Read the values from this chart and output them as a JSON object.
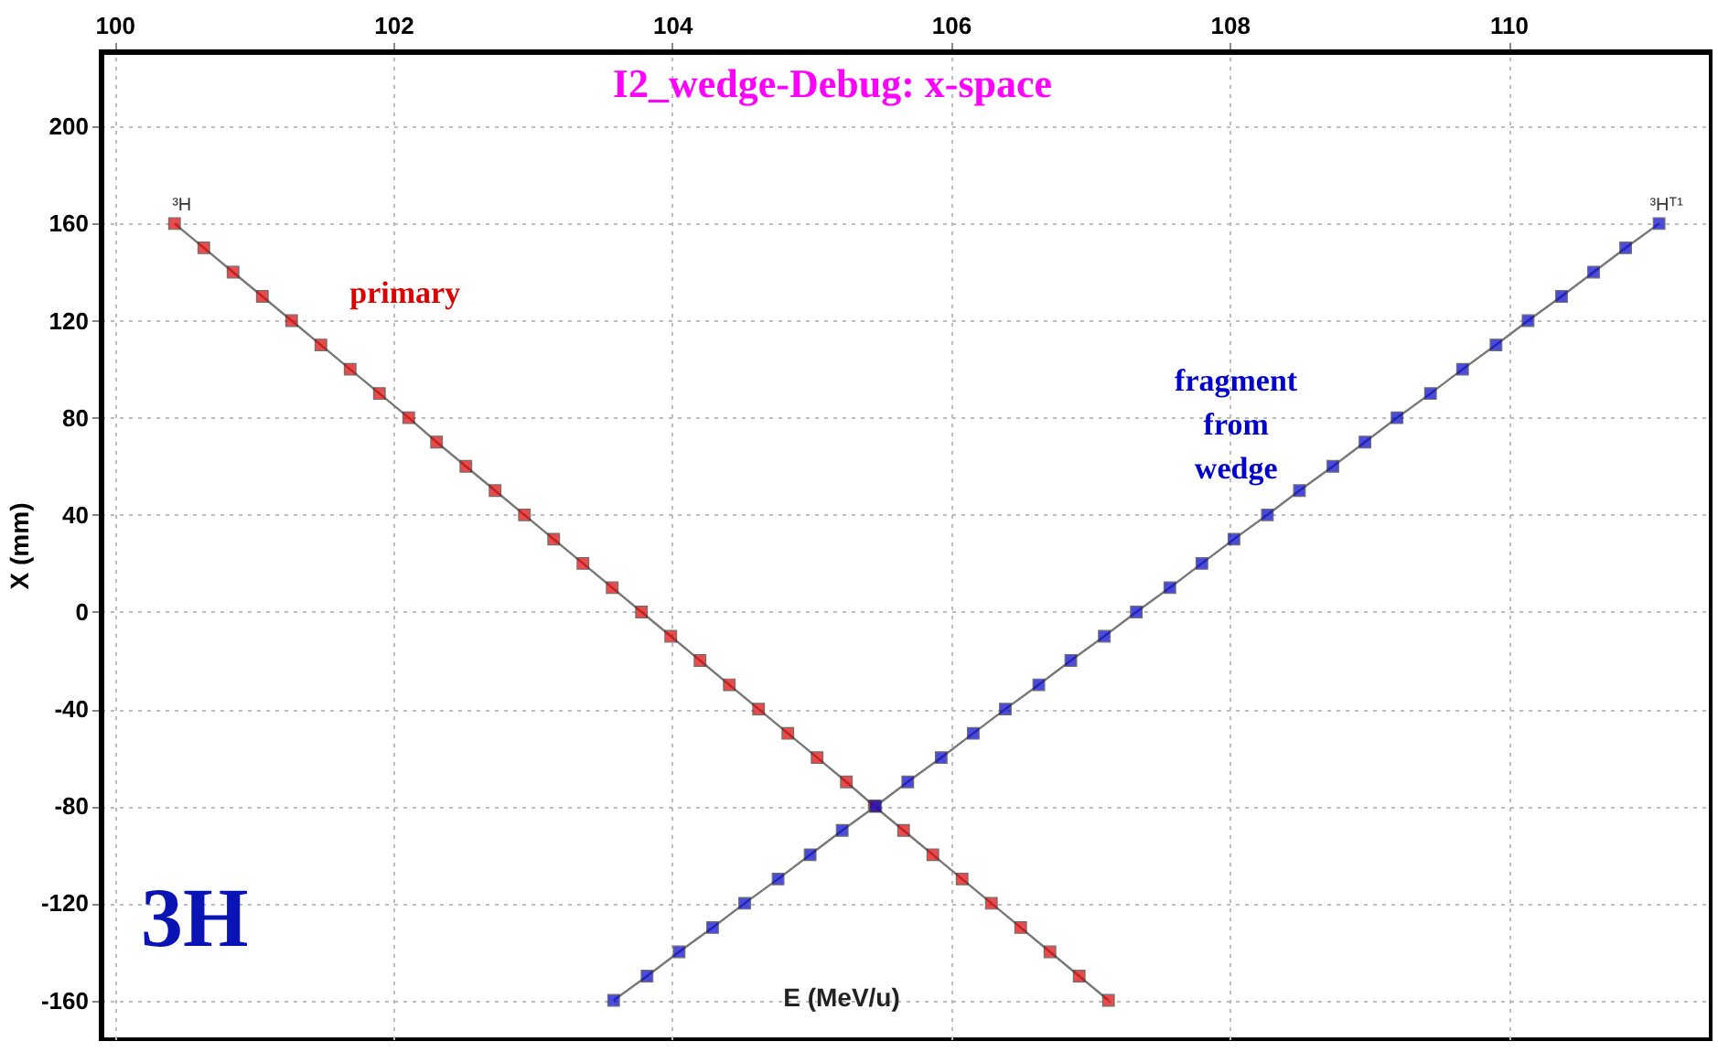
{
  "chart_data": {
    "type": "line",
    "title": "I2_wedge-Debug:  x-space",
    "xlabel": "E (MeV/u)",
    "ylabel": "X (mm)",
    "xlim": [
      99.9,
      111.45
    ],
    "xticks": [
      100,
      102,
      104,
      106,
      108,
      110
    ],
    "ylim": [
      -176,
      231
    ],
    "yticks": [
      -160,
      -120,
      -80,
      -40,
      0,
      40,
      80,
      120,
      160,
      200
    ],
    "grid": true,
    "marker": "square",
    "line_style": "solid",
    "series": [
      {
        "name": "primary",
        "color": "#dd0000",
        "x": [
          100.43,
          100.64,
          100.85,
          101.06,
          101.27,
          101.48,
          101.69,
          101.9,
          102.11,
          102.31,
          102.52,
          102.73,
          102.94,
          103.15,
          103.36,
          103.57,
          103.78,
          103.99,
          104.2,
          104.41,
          104.62,
          104.83,
          105.04,
          105.25,
          105.45,
          105.66,
          105.87,
          106.08,
          106.29,
          106.5,
          106.71,
          106.92,
          107.13
        ],
        "values": [
          160,
          150,
          140,
          130,
          120,
          110,
          100,
          90,
          80,
          70,
          60,
          50,
          40,
          30,
          20,
          10,
          0,
          -10,
          -20,
          -30,
          -40,
          -50,
          -60,
          -70,
          -80,
          -90,
          -100,
          -110,
          -120,
          -130,
          -140,
          -150,
          -160
        ]
      },
      {
        "name": "fragment from wedge",
        "color": "#0000cc",
        "x": [
          103.58,
          103.82,
          104.05,
          104.29,
          104.52,
          104.76,
          104.99,
          105.22,
          105.46,
          105.69,
          105.93,
          106.16,
          106.39,
          106.63,
          106.86,
          107.1,
          107.33,
          107.57,
          107.8,
          108.03,
          108.27,
          108.5,
          108.74,
          108.97,
          109.2,
          109.44,
          109.67,
          109.91,
          110.14,
          110.38,
          110.61,
          110.84,
          111.08
        ],
        "values": [
          -160,
          -150,
          -140,
          -130,
          -120,
          -110,
          -100,
          -90,
          -80,
          -70,
          -60,
          -50,
          -40,
          -30,
          -20,
          -10,
          0,
          10,
          20,
          30,
          40,
          50,
          60,
          70,
          80,
          90,
          100,
          110,
          120,
          130,
          140,
          150,
          160
        ]
      }
    ],
    "annotations": [
      {
        "text": "³H",
        "x": 100.43,
        "y": 160
      },
      {
        "text": "³Hᵀ¹",
        "x": 111.08,
        "y": 160
      },
      "3H"
    ]
  }
}
